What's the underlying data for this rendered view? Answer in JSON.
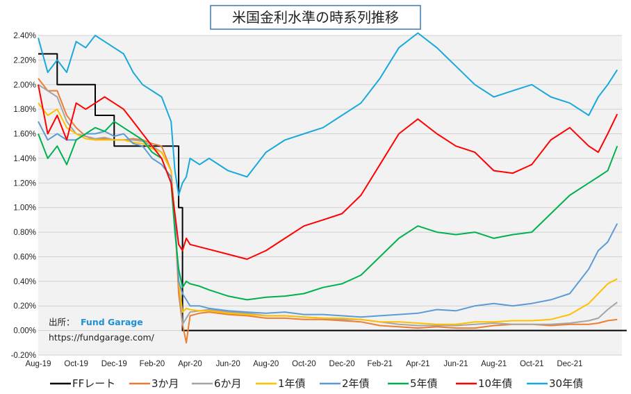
{
  "chart_data": {
    "type": "line",
    "title": "米国金利水準の時系列推移",
    "ylim": [
      -0.2,
      2.4
    ],
    "ytick_labels": [
      "2.40%",
      "2.20%",
      "2.00%",
      "1.80%",
      "1.60%",
      "1.40%",
      "1.20%",
      "1.00%",
      "0.80%",
      "0.60%",
      "0.40%",
      "0.20%",
      "0.00%",
      "-0.20%"
    ],
    "ytick_values": [
      2.4,
      2.2,
      2.0,
      1.8,
      1.6,
      1.4,
      1.2,
      1.0,
      0.8,
      0.6,
      0.4,
      0.2,
      0.0,
      -0.2
    ],
    "xtick_labels": [
      "Aug-19",
      "Oct-19",
      "Dec-19",
      "Feb-20",
      "Apr-20",
      "Jun-20",
      "Aug-20",
      "Oct-20",
      "Dec-20",
      "Feb-21",
      "Apr-21",
      "Jun-21",
      "Aug-21",
      "Oct-21",
      "Dec-21"
    ],
    "x_start": "2019-08",
    "x_end": "2022-01",
    "grid": true,
    "legend_position": "bottom",
    "series": [
      {
        "name": "FFレート",
        "color": "#000000",
        "x": [
          0,
          1,
          2,
          3,
          4,
          5,
          6,
          7,
          7.4,
          7.6,
          8,
          31
        ],
        "values": [
          2.25,
          2.0,
          2.0,
          1.75,
          1.5,
          1.5,
          1.5,
          1.5,
          1.0,
          0.0,
          0.0,
          0.0
        ]
      },
      {
        "name": "3か月",
        "color": "#ed7d31",
        "x": [
          0,
          0.5,
          1,
          1.5,
          2,
          2.5,
          3,
          3.5,
          4,
          4.5,
          5,
          5.5,
          6,
          6.5,
          7,
          7.2,
          7.4,
          7.6,
          7.8,
          8,
          8.5,
          9,
          10,
          11,
          12,
          13,
          14,
          15,
          16,
          17,
          18,
          19,
          20,
          21,
          22,
          23,
          24,
          25,
          26,
          27,
          28,
          29,
          29.5,
          30,
          30.5
        ],
        "values": [
          2.05,
          1.95,
          1.95,
          1.75,
          1.65,
          1.58,
          1.55,
          1.56,
          1.55,
          1.55,
          1.56,
          1.55,
          1.52,
          1.5,
          1.3,
          0.9,
          0.3,
          0.05,
          -0.1,
          0.12,
          0.14,
          0.15,
          0.13,
          0.12,
          0.1,
          0.1,
          0.09,
          0.09,
          0.08,
          0.07,
          0.04,
          0.03,
          0.02,
          0.03,
          0.02,
          0.02,
          0.04,
          0.05,
          0.05,
          0.04,
          0.05,
          0.05,
          0.06,
          0.08,
          0.09
        ]
      },
      {
        "name": "6か月",
        "color": "#a5a5a5",
        "x": [
          0,
          0.5,
          1,
          1.5,
          2,
          2.5,
          3,
          3.5,
          4,
          4.5,
          5,
          5.5,
          6,
          6.5,
          7,
          7.2,
          7.4,
          7.6,
          7.8,
          8,
          8.5,
          9,
          10,
          11,
          12,
          13,
          14,
          15,
          16,
          17,
          18,
          19,
          20,
          21,
          22,
          23,
          24,
          25,
          26,
          27,
          28,
          29,
          29.5,
          30,
          30.5
        ],
        "values": [
          2.0,
          1.95,
          1.9,
          1.7,
          1.6,
          1.58,
          1.56,
          1.57,
          1.55,
          1.55,
          1.55,
          1.54,
          1.5,
          1.45,
          1.3,
          0.9,
          0.4,
          0.05,
          0.1,
          0.15,
          0.16,
          0.17,
          0.15,
          0.14,
          0.12,
          0.12,
          0.11,
          0.1,
          0.09,
          0.09,
          0.07,
          0.05,
          0.04,
          0.04,
          0.04,
          0.05,
          0.06,
          0.05,
          0.05,
          0.05,
          0.06,
          0.08,
          0.1,
          0.17,
          0.23
        ]
      },
      {
        "name": "1年債",
        "color": "#ffc000",
        "x": [
          0,
          0.5,
          1,
          1.5,
          2,
          2.5,
          3,
          3.5,
          4,
          4.5,
          5,
          5.5,
          6,
          6.5,
          7,
          7.2,
          7.4,
          7.6,
          7.8,
          8,
          8.5,
          9,
          10,
          11,
          12,
          13,
          14,
          15,
          16,
          17,
          18,
          19,
          20,
          21,
          22,
          23,
          24,
          25,
          26,
          27,
          28,
          29,
          29.5,
          30,
          30.5
        ],
        "values": [
          1.85,
          1.75,
          1.8,
          1.65,
          1.6,
          1.56,
          1.55,
          1.55,
          1.55,
          1.55,
          1.53,
          1.52,
          1.48,
          1.45,
          1.3,
          0.9,
          0.4,
          0.15,
          0.18,
          0.17,
          0.16,
          0.16,
          0.14,
          0.13,
          0.12,
          0.12,
          0.11,
          0.1,
          0.1,
          0.09,
          0.07,
          0.07,
          0.06,
          0.05,
          0.05,
          0.07,
          0.07,
          0.08,
          0.08,
          0.09,
          0.13,
          0.22,
          0.3,
          0.38,
          0.42
        ]
      },
      {
        "name": "2年債",
        "color": "#5b9bd5",
        "x": [
          0,
          0.5,
          1,
          1.5,
          2,
          2.5,
          3,
          3.5,
          4,
          4.5,
          5,
          5.5,
          6,
          6.5,
          7,
          7.2,
          7.4,
          7.6,
          7.8,
          8,
          8.5,
          9,
          10,
          11,
          12,
          13,
          14,
          15,
          16,
          17,
          18,
          19,
          20,
          21,
          22,
          23,
          24,
          25,
          26,
          27,
          28,
          29,
          29.5,
          30,
          30.5
        ],
        "values": [
          1.7,
          1.55,
          1.6,
          1.55,
          1.55,
          1.6,
          1.6,
          1.62,
          1.58,
          1.6,
          1.52,
          1.5,
          1.4,
          1.35,
          1.25,
          0.9,
          0.4,
          0.3,
          0.25,
          0.2,
          0.2,
          0.18,
          0.16,
          0.15,
          0.14,
          0.15,
          0.13,
          0.13,
          0.12,
          0.11,
          0.12,
          0.13,
          0.14,
          0.17,
          0.16,
          0.2,
          0.22,
          0.2,
          0.22,
          0.25,
          0.3,
          0.5,
          0.65,
          0.72,
          0.87
        ]
      },
      {
        "name": "5年債",
        "color": "#00b050",
        "x": [
          0,
          0.5,
          1,
          1.5,
          2,
          2.5,
          3,
          3.5,
          4,
          4.5,
          5,
          5.5,
          6,
          6.5,
          7,
          7.2,
          7.4,
          7.6,
          7.8,
          8,
          8.5,
          9,
          10,
          11,
          12,
          13,
          14,
          15,
          16,
          17,
          18,
          19,
          20,
          21,
          22,
          23,
          24,
          25,
          26,
          27,
          28,
          29,
          29.5,
          30,
          30.5
        ],
        "values": [
          1.6,
          1.4,
          1.5,
          1.35,
          1.55,
          1.6,
          1.65,
          1.62,
          1.7,
          1.65,
          1.6,
          1.55,
          1.45,
          1.4,
          1.2,
          0.8,
          0.5,
          0.35,
          0.4,
          0.38,
          0.36,
          0.33,
          0.28,
          0.25,
          0.27,
          0.28,
          0.3,
          0.35,
          0.38,
          0.45,
          0.6,
          0.75,
          0.85,
          0.8,
          0.78,
          0.8,
          0.75,
          0.78,
          0.8,
          0.95,
          1.1,
          1.2,
          1.25,
          1.3,
          1.5
        ]
      },
      {
        "name": "10年債",
        "color": "#ff0000",
        "x": [
          0,
          0.5,
          1,
          1.5,
          2,
          2.5,
          3,
          3.5,
          4,
          4.5,
          5,
          5.5,
          6,
          6.5,
          7,
          7.2,
          7.4,
          7.6,
          7.8,
          8,
          8.5,
          9,
          10,
          11,
          12,
          13,
          14,
          15,
          16,
          17,
          18,
          19,
          20,
          21,
          22,
          23,
          24,
          25,
          26,
          27,
          28,
          29,
          29.5,
          30,
          30.5
        ],
        "values": [
          2.0,
          1.6,
          1.75,
          1.55,
          1.85,
          1.8,
          1.85,
          1.9,
          1.85,
          1.8,
          1.7,
          1.6,
          1.5,
          1.4,
          1.2,
          0.95,
          0.7,
          0.65,
          0.75,
          0.7,
          0.68,
          0.66,
          0.62,
          0.58,
          0.65,
          0.75,
          0.85,
          0.9,
          0.95,
          1.1,
          1.35,
          1.6,
          1.72,
          1.6,
          1.5,
          1.45,
          1.3,
          1.28,
          1.35,
          1.55,
          1.65,
          1.5,
          1.45,
          1.6,
          1.76
        ]
      },
      {
        "name": "30年債",
        "color": "#17a9dd",
        "x": [
          0,
          0.5,
          1,
          1.5,
          2,
          2.5,
          3,
          3.5,
          4,
          4.5,
          5,
          5.5,
          6,
          6.5,
          7,
          7.2,
          7.4,
          7.6,
          7.8,
          8,
          8.5,
          9,
          10,
          11,
          12,
          13,
          14,
          15,
          16,
          17,
          18,
          19,
          20,
          21,
          22,
          23,
          24,
          25,
          26,
          27,
          28,
          29,
          29.5,
          30,
          30.5
        ],
        "values": [
          2.38,
          2.1,
          2.2,
          2.1,
          2.35,
          2.3,
          2.4,
          2.35,
          2.3,
          2.25,
          2.1,
          2.0,
          1.95,
          1.9,
          1.7,
          1.3,
          1.1,
          1.2,
          1.25,
          1.4,
          1.35,
          1.4,
          1.3,
          1.25,
          1.45,
          1.55,
          1.6,
          1.65,
          1.75,
          1.85,
          2.05,
          2.3,
          2.42,
          2.3,
          2.15,
          2.0,
          1.9,
          1.95,
          2.0,
          1.9,
          1.85,
          1.75,
          1.9,
          2.0,
          2.12
        ]
      }
    ]
  },
  "source": {
    "label": "出所：",
    "brand": "Fund Garage",
    "url": "https://fundgarage.com/"
  }
}
